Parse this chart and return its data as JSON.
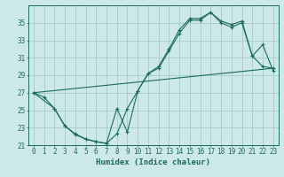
{
  "xlabel": "Humidex (Indice chaleur)",
  "bg_color": "#cce8e8",
  "grid_color": "#aacfcf",
  "line_color": "#1a6b5a",
  "xlim": [
    -0.5,
    23.5
  ],
  "ylim": [
    21,
    37
  ],
  "yticks": [
    21,
    23,
    25,
    27,
    29,
    31,
    33,
    35
  ],
  "xticks": [
    0,
    1,
    2,
    3,
    4,
    5,
    6,
    7,
    8,
    9,
    10,
    11,
    12,
    13,
    14,
    15,
    16,
    17,
    18,
    19,
    20,
    21,
    22,
    23
  ],
  "curve1_x": [
    0,
    1,
    2,
    3,
    4,
    5,
    6,
    7,
    8,
    9,
    10,
    11,
    12,
    13,
    14,
    15,
    16,
    17,
    18,
    19,
    20,
    21,
    22,
    23
  ],
  "curve1_y": [
    27.0,
    26.5,
    25.2,
    23.2,
    22.3,
    21.7,
    21.4,
    21.2,
    22.3,
    25.2,
    27.2,
    29.2,
    29.8,
    31.8,
    33.8,
    35.3,
    35.3,
    36.2,
    35.0,
    34.5,
    35.0,
    31.2,
    30.0,
    29.8
  ],
  "curve2_x": [
    0,
    2,
    3,
    4,
    5,
    6,
    7,
    8,
    9,
    10,
    11,
    12,
    13,
    14,
    15,
    16,
    17,
    18,
    19,
    20,
    21,
    22,
    23
  ],
  "curve2_y": [
    27.0,
    25.2,
    23.2,
    22.2,
    21.7,
    21.4,
    21.2,
    25.2,
    22.5,
    27.2,
    29.2,
    30.0,
    32.0,
    34.2,
    35.5,
    35.5,
    36.2,
    35.2,
    34.8,
    35.2,
    31.2,
    32.5,
    29.5
  ],
  "line3_x": [
    0,
    23
  ],
  "line3_y": [
    27.0,
    29.8
  ]
}
